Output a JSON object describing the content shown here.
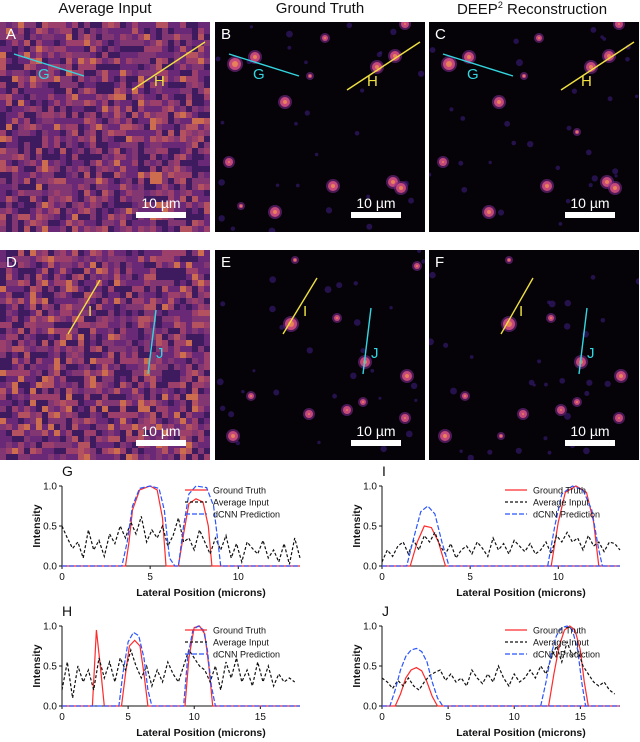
{
  "titles": {
    "col1": "Average Input",
    "col2": "Ground Truth",
    "col3_main": "DEEP",
    "col3_sup": "2",
    "col3_rest": " Reconstruction"
  },
  "panels": [
    {
      "id": "A",
      "label": "A",
      "kind": "noise"
    },
    {
      "id": "B",
      "label": "B",
      "kind": "dark"
    },
    {
      "id": "C",
      "label": "C",
      "kind": "dark"
    },
    {
      "id": "D",
      "label": "D",
      "kind": "noise"
    },
    {
      "id": "E",
      "label": "E",
      "kind": "dark"
    },
    {
      "id": "F",
      "label": "F",
      "kind": "dark"
    }
  ],
  "line_labels": {
    "G": "G",
    "H": "H",
    "I": "I",
    "J": "J"
  },
  "scale_bar": "10 µm",
  "colors": {
    "cyan": "#33d6e0",
    "yellow": "#f0e040",
    "ground_truth": "#ff2a2a",
    "average": "#111111",
    "prediction": "#2a55ff"
  },
  "charts_common": {
    "xlabel": "Lateral Position (microns)",
    "ylabel": "Intensity",
    "legend": [
      "Ground Truth",
      "Average Input",
      "dCNN Prediction"
    ]
  },
  "chart_data": [
    {
      "label": "G",
      "type": "line",
      "xlim": [
        0,
        13.5
      ],
      "ylim": [
        0,
        1
      ],
      "xticks": [
        0,
        5,
        10
      ],
      "yticks": [
        0.0,
        0.5,
        1.0
      ],
      "series": [
        {
          "name": "Ground Truth",
          "x": [
            0,
            3.6,
            3.8,
            4.0,
            4.4,
            5.0,
            5.4,
            5.7,
            5.9,
            6.2,
            6.6,
            6.9,
            7.2,
            7.6,
            8.0,
            8.3,
            8.5,
            13.5
          ],
          "y": [
            0,
            0,
            0.3,
            0.7,
            0.95,
            1.0,
            0.95,
            0.6,
            0,
            0,
            0,
            0.4,
            0.78,
            0.84,
            0.8,
            0.5,
            0,
            0
          ]
        },
        {
          "name": "Average Input",
          "x": [
            0,
            0.3,
            0.6,
            0.9,
            1.2,
            1.5,
            1.8,
            2.1,
            2.4,
            2.7,
            3.0,
            3.3,
            3.6,
            3.9,
            4.2,
            4.5,
            4.8,
            5.1,
            5.4,
            5.7,
            6.0,
            6.3,
            6.6,
            6.9,
            7.2,
            7.5,
            7.8,
            8.1,
            8.4,
            8.7,
            9.0,
            9.3,
            9.6,
            9.9,
            10.2,
            10.5,
            10.8,
            11.1,
            11.4,
            11.7,
            12.0,
            12.3,
            12.6,
            12.9,
            13.2,
            13.5
          ],
          "y": [
            0.5,
            0.35,
            0.22,
            0.3,
            0.1,
            0.45,
            0.2,
            0.32,
            0.12,
            0.4,
            0.28,
            0.5,
            0.35,
            0.55,
            0.4,
            0.62,
            0.3,
            0.45,
            0.35,
            0.5,
            0.25,
            0.38,
            0.6,
            0.3,
            0.35,
            0.2,
            0.45,
            0.3,
            0.15,
            0.35,
            0.2,
            0.38,
            0.1,
            0.28,
            0.05,
            0.3,
            0.22,
            0.15,
            0.32,
            0.1,
            0.2,
            0.05,
            0.28,
            0.02,
            0.35,
            0.1
          ]
        },
        {
          "name": "dCNN Prediction",
          "x": [
            0,
            3.4,
            3.7,
            4.0,
            4.4,
            5.0,
            5.5,
            5.8,
            6.1,
            6.4,
            6.6,
            6.9,
            7.2,
            7.6,
            8.2,
            8.6,
            8.9,
            9.0,
            13.5
          ],
          "y": [
            0,
            0,
            0.3,
            0.75,
            0.97,
            1.0,
            0.97,
            0.7,
            0.1,
            0,
            0,
            0.5,
            0.9,
            1.0,
            0.98,
            0.75,
            0.2,
            0,
            0
          ]
        }
      ]
    },
    {
      "label": "I",
      "type": "line",
      "xlim": [
        0,
        13.5
      ],
      "ylim": [
        0,
        1
      ],
      "xticks": [
        0,
        5,
        10
      ],
      "yticks": [
        0.0,
        0.5,
        1.0
      ],
      "series": [
        {
          "name": "Ground Truth",
          "x": [
            0,
            1.6,
            2.0,
            2.4,
            2.8,
            3.2,
            3.6,
            13.5
          ],
          "y": [
            0,
            0,
            0.3,
            0.5,
            0.48,
            0.3,
            0,
            0
          ],
          "x2": [
            9.6,
            10.0,
            10.4,
            11.0,
            11.6,
            12.0,
            12.3
          ],
          "y2": [
            0,
            0.55,
            0.92,
            1.0,
            0.92,
            0.55,
            0
          ]
        },
        {
          "name": "Average Input",
          "x": [
            0,
            0.3,
            0.6,
            0.9,
            1.2,
            1.5,
            1.8,
            2.1,
            2.4,
            2.7,
            3.0,
            3.3,
            3.6,
            3.9,
            4.2,
            4.5,
            4.8,
            5.1,
            5.4,
            5.7,
            6.0,
            6.3,
            6.6,
            6.9,
            7.2,
            7.5,
            7.8,
            8.1,
            8.4,
            8.7,
            9.0,
            9.3,
            9.6,
            9.9,
            10.2,
            10.5,
            10.8,
            11.1,
            11.4,
            11.7,
            12.0,
            12.3,
            12.6,
            12.9,
            13.2,
            13.5
          ],
          "y": [
            0.05,
            0.2,
            0.12,
            0.25,
            0.3,
            0.15,
            0.32,
            0.2,
            0.38,
            0.3,
            0.42,
            0.25,
            0.15,
            0.28,
            0.1,
            0.2,
            0.25,
            0.15,
            0.3,
            0.22,
            0.12,
            0.35,
            0.2,
            0.28,
            0.15,
            0.32,
            0.25,
            0.18,
            0.28,
            0.15,
            0.2,
            0.3,
            0.15,
            0.38,
            0.3,
            0.42,
            0.3,
            0.35,
            0.2,
            0.38,
            0.25,
            0.3,
            0.18,
            0.3,
            0.28,
            0.2
          ]
        },
        {
          "name": "dCNN Prediction",
          "x": [
            0,
            1.4,
            1.8,
            2.2,
            2.6,
            3.0,
            3.4,
            3.8,
            13.5
          ],
          "y": [
            0,
            0,
            0.35,
            0.68,
            0.75,
            0.65,
            0.3,
            0,
            0
          ],
          "x2": [
            9.4,
            9.8,
            10.2,
            10.8,
            11.4,
            11.9,
            12.3,
            12.5
          ],
          "y2": [
            0,
            0.5,
            0.9,
            1.0,
            0.95,
            0.7,
            0.2,
            0
          ]
        }
      ]
    },
    {
      "label": "H",
      "type": "line",
      "xlim": [
        0,
        18
      ],
      "ylim": [
        0,
        1
      ],
      "xticks": [
        0,
        5,
        10,
        15
      ],
      "yticks": [
        0.0,
        0.5,
        1.0
      ],
      "series": [
        {
          "name": "Ground Truth",
          "x": [
            0,
            2.3,
            2.6,
            2.9,
            3.2,
            4.5,
            4.8,
            5.1,
            5.5,
            5.9,
            6.2,
            6.5,
            9.3,
            9.6,
            10.0,
            10.4,
            10.8,
            11.1,
            11.4,
            18
          ],
          "y": [
            0,
            0,
            0.95,
            0.5,
            0,
            0,
            0.4,
            0.75,
            0.82,
            0.75,
            0.4,
            0,
            0,
            0.6,
            0.98,
            1.0,
            0.9,
            0.5,
            0,
            0
          ]
        },
        {
          "name": "Average Input",
          "x": [
            0,
            0.4,
            0.8,
            1.2,
            1.6,
            2.0,
            2.4,
            2.8,
            3.2,
            3.6,
            4.0,
            4.4,
            4.8,
            5.2,
            5.6,
            6.0,
            6.4,
            6.8,
            7.2,
            7.6,
            8.0,
            8.4,
            8.8,
            9.2,
            9.6,
            10.0,
            10.4,
            10.8,
            11.2,
            11.6,
            12.0,
            12.4,
            12.8,
            13.2,
            13.6,
            14.0,
            14.4,
            14.8,
            15.2,
            15.6,
            16.0,
            16.4,
            16.8,
            17.2,
            17.6
          ],
          "y": [
            0.2,
            0.55,
            0.1,
            0.5,
            0.3,
            0.45,
            0.2,
            0.6,
            0.35,
            0.55,
            0.3,
            0.6,
            0.45,
            0.7,
            0.5,
            0.35,
            0.5,
            0.25,
            0.45,
            0.3,
            0.55,
            0.4,
            0.3,
            0.5,
            0.7,
            0.6,
            0.5,
            0.45,
            0.3,
            0.5,
            0.2,
            0.55,
            0.35,
            0.6,
            0.3,
            0.45,
            0.25,
            0.55,
            0.3,
            0.5,
            0.25,
            0.4,
            0.3,
            0.35,
            0.3
          ]
        },
        {
          "name": "dCNN Prediction",
          "x": [
            0,
            4.3,
            4.6,
            5.0,
            5.4,
            5.8,
            6.2,
            6.5,
            6.8,
            9.2,
            9.5,
            9.9,
            10.3,
            10.7,
            11.0,
            11.3,
            11.6,
            18
          ],
          "y": [
            0,
            0,
            0.4,
            0.8,
            0.92,
            0.88,
            0.6,
            0.2,
            0,
            0,
            0.6,
            0.95,
            1.0,
            0.95,
            0.7,
            0.25,
            0,
            0
          ]
        }
      ]
    },
    {
      "label": "J",
      "type": "line",
      "xlim": [
        0,
        18
      ],
      "ylim": [
        0,
        1
      ],
      "xticks": [
        0,
        5,
        10,
        15
      ],
      "yticks": [
        0.0,
        0.5,
        1.0
      ],
      "series": [
        {
          "name": "Ground Truth",
          "x": [
            0,
            1.0,
            1.4,
            1.8,
            2.2,
            2.6,
            3.0,
            3.4,
            3.8,
            4.2,
            18
          ],
          "y": [
            0,
            0,
            0.15,
            0.35,
            0.45,
            0.48,
            0.44,
            0.3,
            0.12,
            0,
            0
          ],
          "x2": [
            12.6,
            13.0,
            13.4,
            13.8,
            14.2,
            14.6,
            15.0,
            15.3,
            15.6
          ],
          "y2": [
            0,
            0.4,
            0.75,
            0.95,
            1.0,
            0.95,
            0.7,
            0.3,
            0
          ]
        },
        {
          "name": "Average Input",
          "x": [
            0,
            0.4,
            0.8,
            1.2,
            1.6,
            2.0,
            2.4,
            2.8,
            3.2,
            3.6,
            4.0,
            4.4,
            4.8,
            5.2,
            5.6,
            6.0,
            6.4,
            6.8,
            7.2,
            7.6,
            8.0,
            8.4,
            8.8,
            9.2,
            9.6,
            10.0,
            10.4,
            10.8,
            11.2,
            11.6,
            12.0,
            12.4,
            12.8,
            13.2,
            13.6,
            14.0,
            14.4,
            14.8,
            15.2,
            15.6,
            16.0,
            16.4,
            16.8,
            17.2,
            17.6
          ],
          "y": [
            0.35,
            0.3,
            0.22,
            0.32,
            0.25,
            0.35,
            0.25,
            0.2,
            0.3,
            0.38,
            0.42,
            0.45,
            0.32,
            0.4,
            0.3,
            0.35,
            0.25,
            0.45,
            0.35,
            0.28,
            0.4,
            0.3,
            0.5,
            0.35,
            0.25,
            0.4,
            0.3,
            0.35,
            0.45,
            0.35,
            0.5,
            0.4,
            0.6,
            0.75,
            0.55,
            0.8,
            0.62,
            0.7,
            0.5,
            0.4,
            0.3,
            0.25,
            0.3,
            0.2,
            0.15
          ]
        },
        {
          "name": "dCNN Prediction",
          "x": [
            0,
            0.6,
            1.0,
            1.4,
            1.8,
            2.2,
            2.6,
            3.0,
            3.4,
            3.8,
            4.2,
            4.6,
            18
          ],
          "y": [
            0,
            0,
            0.2,
            0.45,
            0.62,
            0.7,
            0.72,
            0.68,
            0.55,
            0.3,
            0.1,
            0,
            0
          ],
          "x2": [
            12.0,
            12.4,
            12.8,
            13.2,
            13.6,
            14.0,
            14.4,
            14.8,
            15.1,
            15.4
          ],
          "y2": [
            0,
            0.3,
            0.65,
            0.88,
            0.98,
            1.0,
            0.95,
            0.7,
            0.3,
            0
          ]
        }
      ]
    }
  ]
}
